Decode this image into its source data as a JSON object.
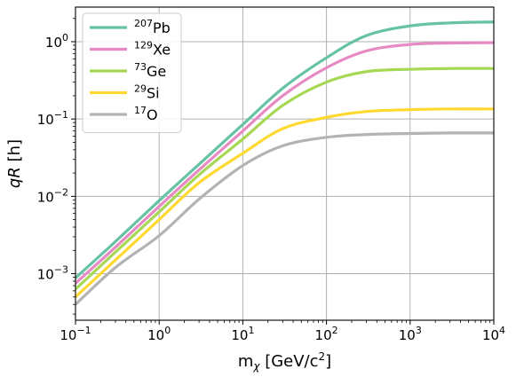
{
  "chart_data": {
    "type": "line",
    "title": "",
    "xlabel": {
      "main": "m",
      "sub": "χ",
      "unit_pre": " [GeV/c",
      "unit_sup": "2",
      "unit_post": "]"
    },
    "ylabel": {
      "q": "q",
      "r": "R",
      "rest": " [h]"
    },
    "xscale": "log",
    "yscale": "log",
    "xlim": [
      0.1,
      10000
    ],
    "ylim": [
      0.00025,
      2.8
    ],
    "grid": true,
    "legend_position": "top-left",
    "x_ticks": [
      {
        "value": 0.1,
        "base": "10",
        "exp": "−1"
      },
      {
        "value": 1,
        "base": "10",
        "exp": "0"
      },
      {
        "value": 10,
        "base": "10",
        "exp": "1"
      },
      {
        "value": 100,
        "base": "10",
        "exp": "2"
      },
      {
        "value": 1000,
        "base": "10",
        "exp": "3"
      },
      {
        "value": 10000,
        "base": "10",
        "exp": "4"
      }
    ],
    "y_ticks": [
      {
        "value": 0.001,
        "base": "10",
        "exp": "−3"
      },
      {
        "value": 0.01,
        "base": "10",
        "exp": "−2"
      },
      {
        "value": 0.1,
        "base": "10",
        "exp": "−1"
      },
      {
        "value": 1,
        "base": "10",
        "exp": "0"
      }
    ],
    "series": [
      {
        "name_sup": "207",
        "name": "Pb",
        "color": "#66c2a5",
        "x": [
          0.1,
          0.3,
          1,
          3,
          10,
          30,
          100,
          300,
          1000,
          3000,
          10000
        ],
        "y": [
          0.00088,
          0.0026,
          0.0088,
          0.026,
          0.085,
          0.25,
          0.62,
          1.2,
          1.6,
          1.75,
          1.8
        ]
      },
      {
        "name_sup": "129",
        "name": "Xe",
        "color": "#e78ac3",
        "x": [
          0.1,
          0.3,
          1,
          3,
          10,
          30,
          100,
          300,
          1000,
          3000,
          10000
        ],
        "y": [
          0.00075,
          0.0022,
          0.0074,
          0.022,
          0.07,
          0.2,
          0.46,
          0.76,
          0.92,
          0.96,
          0.97
        ]
      },
      {
        "name_sup": "73",
        "name": "Ge",
        "color": "#a6d854",
        "x": [
          0.1,
          0.3,
          1,
          3,
          10,
          30,
          100,
          300,
          1000,
          3000,
          10000
        ],
        "y": [
          0.00063,
          0.0019,
          0.0063,
          0.019,
          0.055,
          0.15,
          0.3,
          0.41,
          0.44,
          0.45,
          0.45
        ]
      },
      {
        "name_sup": "29",
        "name": "Si",
        "color": "#ffd92f",
        "x": [
          0.1,
          0.3,
          1,
          3,
          10,
          30,
          100,
          300,
          1000,
          3000,
          10000
        ],
        "y": [
          0.0005,
          0.0015,
          0.005,
          0.015,
          0.036,
          0.075,
          0.105,
          0.125,
          0.132,
          0.135,
          0.135
        ]
      },
      {
        "name_sup": "17",
        "name": "O",
        "color": "#b3b3b3",
        "x": [
          0.1,
          0.3,
          1,
          3,
          10,
          30,
          100,
          300,
          1000,
          3000,
          10000
        ],
        "y": [
          0.0004,
          0.0012,
          0.0031,
          0.0092,
          0.025,
          0.045,
          0.058,
          0.063,
          0.065,
          0.066,
          0.066
        ]
      }
    ]
  }
}
